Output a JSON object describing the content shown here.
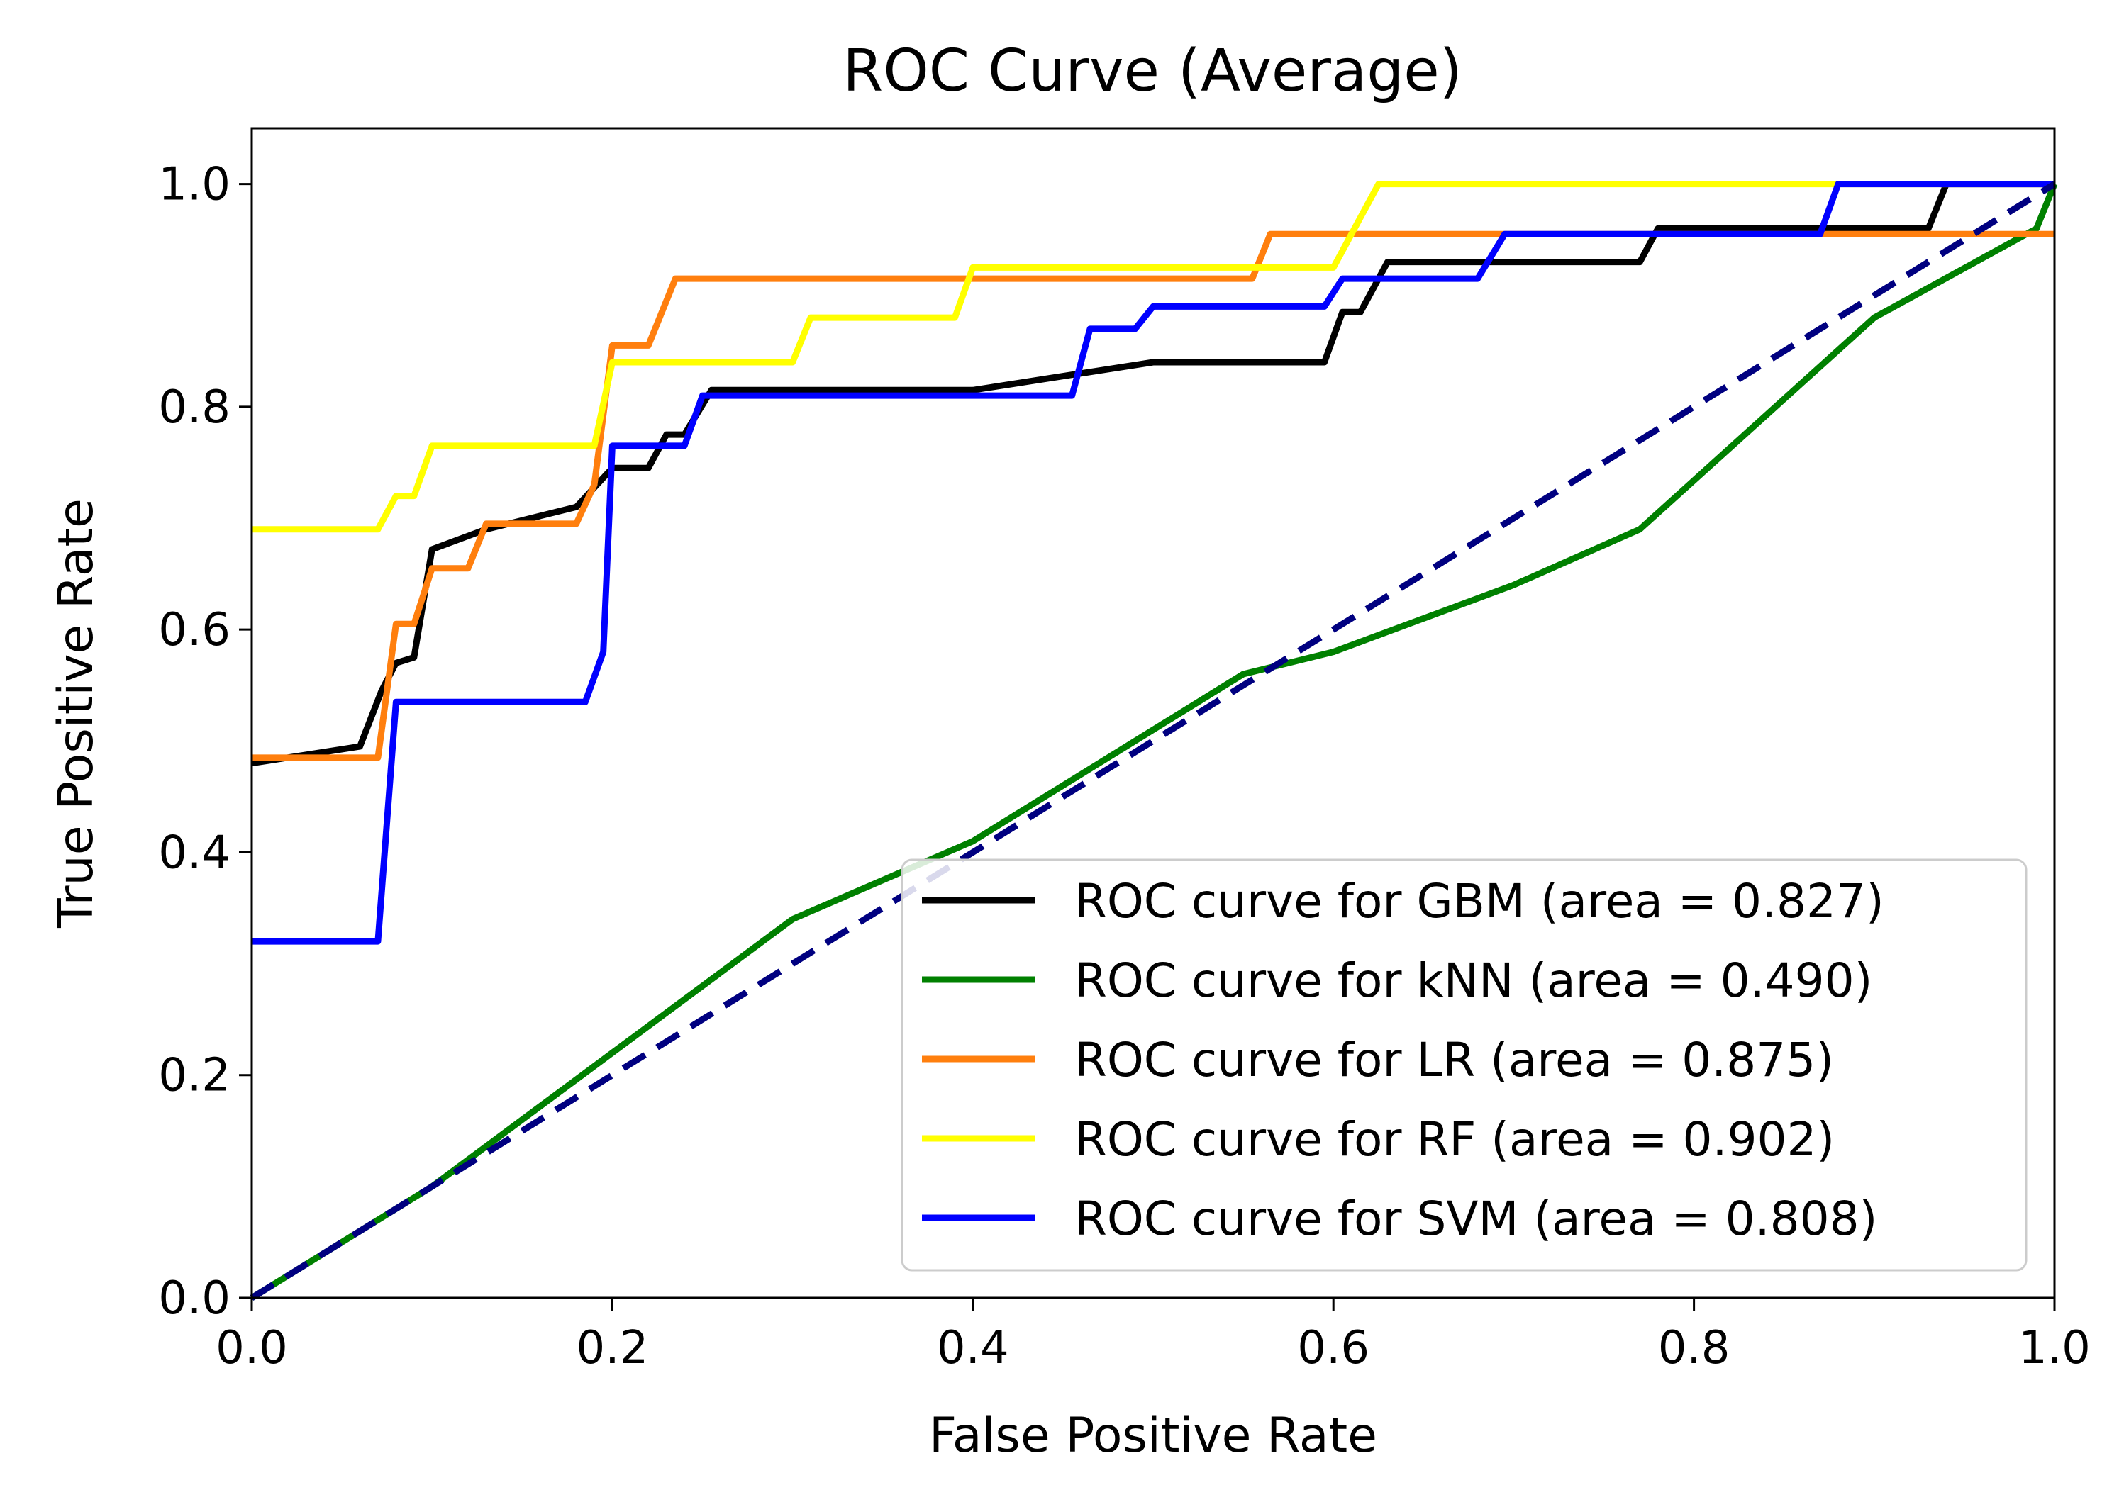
{
  "chart_data": {
    "type": "line",
    "title": "ROC Curve (Average)",
    "xlabel": "False Positive Rate",
    "ylabel": "True Positive Rate",
    "xlim": [
      0.0,
      1.0
    ],
    "ylim": [
      0.0,
      1.05
    ],
    "x_ticks": [
      "0.0",
      "0.2",
      "0.4",
      "0.6",
      "0.8",
      "1.0"
    ],
    "y_ticks": [
      "0.0",
      "0.2",
      "0.4",
      "0.6",
      "0.8",
      "1.0"
    ],
    "grid": false,
    "legend_position": "lower-right",
    "reference_line": {
      "name": "chance",
      "style": "dashed",
      "color": "#000080",
      "points": [
        [
          0,
          0
        ],
        [
          1,
          1
        ]
      ]
    },
    "series": [
      {
        "name": "GBM",
        "label": "ROC curve for GBM (area = 0.827)",
        "color": "#000000",
        "points": [
          [
            0,
            0.48
          ],
          [
            0.06,
            0.495
          ],
          [
            0.072,
            0.545
          ],
          [
            0.08,
            0.57
          ],
          [
            0.09,
            0.575
          ],
          [
            0.1,
            0.672
          ],
          [
            0.13,
            0.69
          ],
          [
            0.18,
            0.71
          ],
          [
            0.2,
            0.745
          ],
          [
            0.22,
            0.745
          ],
          [
            0.23,
            0.775
          ],
          [
            0.24,
            0.775
          ],
          [
            0.255,
            0.815
          ],
          [
            0.4,
            0.815
          ],
          [
            0.5,
            0.84
          ],
          [
            0.595,
            0.84
          ],
          [
            0.605,
            0.885
          ],
          [
            0.615,
            0.885
          ],
          [
            0.63,
            0.93
          ],
          [
            0.77,
            0.93
          ],
          [
            0.78,
            0.96
          ],
          [
            0.93,
            0.96
          ],
          [
            0.94,
            1.0
          ],
          [
            1.0,
            1.0
          ]
        ]
      },
      {
        "name": "kNN",
        "label": "ROC curve for kNN (area = 0.490)",
        "color": "#008000",
        "points": [
          [
            0,
            0
          ],
          [
            0.1,
            0.1
          ],
          [
            0.2,
            0.22
          ],
          [
            0.3,
            0.34
          ],
          [
            0.4,
            0.41
          ],
          [
            0.55,
            0.56
          ],
          [
            0.6,
            0.58
          ],
          [
            0.7,
            0.64
          ],
          [
            0.77,
            0.69
          ],
          [
            0.9,
            0.88
          ],
          [
            0.99,
            0.96
          ],
          [
            1.0,
            1.0
          ]
        ]
      },
      {
        "name": "LR",
        "label": "ROC curve for LR (area = 0.875)",
        "color": "#ff7f0e",
        "points": [
          [
            0,
            0.485
          ],
          [
            0.07,
            0.485
          ],
          [
            0.08,
            0.605
          ],
          [
            0.09,
            0.605
          ],
          [
            0.1,
            0.655
          ],
          [
            0.12,
            0.655
          ],
          [
            0.13,
            0.695
          ],
          [
            0.18,
            0.695
          ],
          [
            0.19,
            0.73
          ],
          [
            0.2,
            0.855
          ],
          [
            0.22,
            0.855
          ],
          [
            0.235,
            0.915
          ],
          [
            0.555,
            0.915
          ],
          [
            0.565,
            0.955
          ],
          [
            0.7,
            0.955
          ],
          [
            1.0,
            0.955
          ]
        ]
      },
      {
        "name": "RF",
        "label": "ROC curve for RF (area = 0.902)",
        "color": "#ffff00",
        "points": [
          [
            0,
            0.69
          ],
          [
            0.07,
            0.69
          ],
          [
            0.08,
            0.72
          ],
          [
            0.09,
            0.72
          ],
          [
            0.1,
            0.765
          ],
          [
            0.19,
            0.765
          ],
          [
            0.2,
            0.84
          ],
          [
            0.3,
            0.84
          ],
          [
            0.31,
            0.88
          ],
          [
            0.39,
            0.88
          ],
          [
            0.4,
            0.925
          ],
          [
            0.6,
            0.925
          ],
          [
            0.625,
            1.0
          ],
          [
            1.0,
            1.0
          ]
        ]
      },
      {
        "name": "SVM",
        "label": "ROC curve for SVM (area = 0.808)",
        "color": "#0000ff",
        "points": [
          [
            0,
            0.32
          ],
          [
            0.07,
            0.32
          ],
          [
            0.08,
            0.535
          ],
          [
            0.185,
            0.535
          ],
          [
            0.195,
            0.58
          ],
          [
            0.2,
            0.765
          ],
          [
            0.24,
            0.765
          ],
          [
            0.25,
            0.81
          ],
          [
            0.455,
            0.81
          ],
          [
            0.465,
            0.87
          ],
          [
            0.49,
            0.87
          ],
          [
            0.5,
            0.89
          ],
          [
            0.595,
            0.89
          ],
          [
            0.605,
            0.915
          ],
          [
            0.68,
            0.915
          ],
          [
            0.695,
            0.955
          ],
          [
            0.87,
            0.955
          ],
          [
            0.88,
            1.0
          ],
          [
            1.0,
            1.0
          ]
        ]
      }
    ]
  }
}
